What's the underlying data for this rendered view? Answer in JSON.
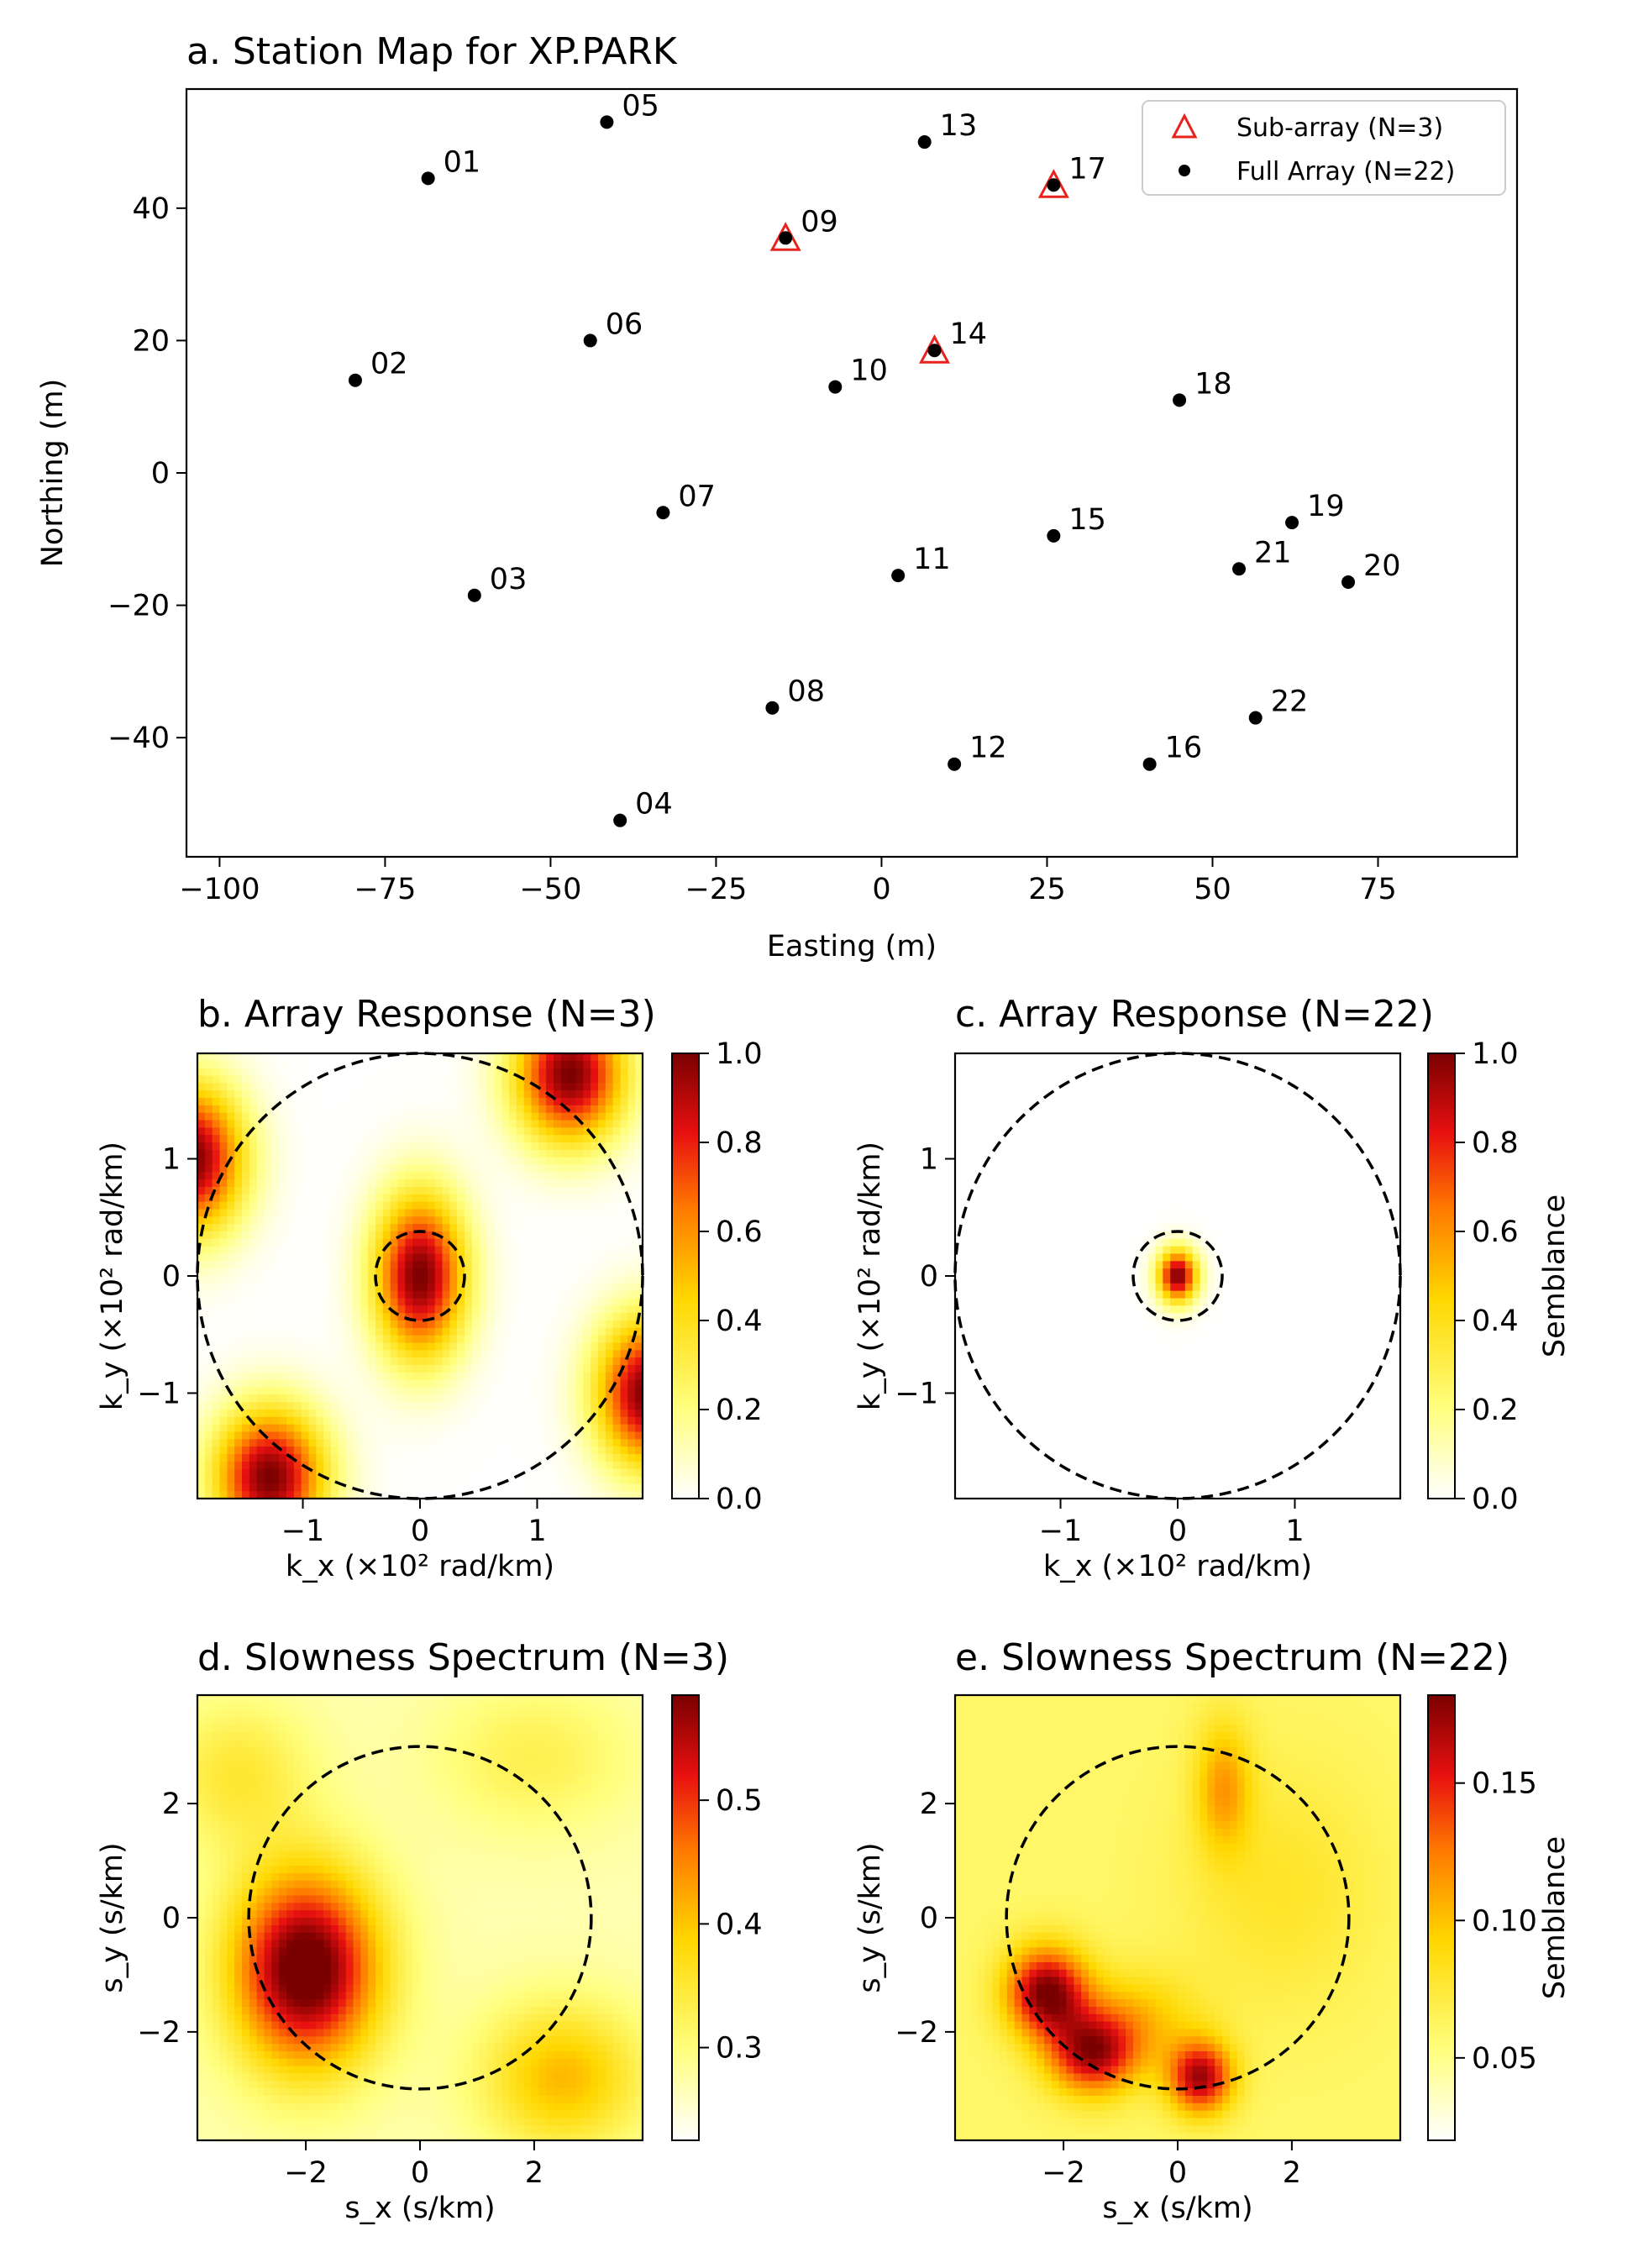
{
  "chart_data": [
    {
      "id": "a",
      "type": "scatter",
      "title": "a. Station Map for XP.PARK",
      "xlabel": "Easting (m)",
      "ylabel": "Northing (m)",
      "xlim": [
        -105,
        96
      ],
      "ylim": [
        -58,
        58
      ],
      "xticks": [
        -100,
        -75,
        -50,
        -25,
        0,
        25,
        50,
        75
      ],
      "xtick_labels": [
        "−100",
        "−75",
        "−50",
        "−25",
        "0",
        "25",
        "50",
        "75"
      ],
      "yticks": [
        -40,
        -20,
        0,
        20,
        40
      ],
      "ytick_labels": [
        "−40",
        "−20",
        "0",
        "20",
        "40"
      ],
      "grid": false,
      "legend": {
        "placement": "top-right",
        "entries": [
          {
            "label": "Sub-array (N=3)",
            "marker": "triangle-open",
            "color": "#e8231e"
          },
          {
            "label": "Full Array (N=22)",
            "marker": "dot",
            "color": "#000000"
          }
        ]
      },
      "stations": [
        {
          "label": "01",
          "x": -68.5,
          "y": 44.5
        },
        {
          "label": "02",
          "x": -79.5,
          "y": 14.0
        },
        {
          "label": "03",
          "x": -61.5,
          "y": -18.5
        },
        {
          "label": "04",
          "x": -39.5,
          "y": -52.5
        },
        {
          "label": "05",
          "x": -41.5,
          "y": 53.0
        },
        {
          "label": "06",
          "x": -44.0,
          "y": 20.0
        },
        {
          "label": "07",
          "x": -33.0,
          "y": -6.0
        },
        {
          "label": "08",
          "x": -16.5,
          "y": -35.5
        },
        {
          "label": "09",
          "x": -14.5,
          "y": 35.5
        },
        {
          "label": "10",
          "x": -7.0,
          "y": 13.0
        },
        {
          "label": "11",
          "x": 2.5,
          "y": -15.5
        },
        {
          "label": "12",
          "x": 11.0,
          "y": -44.0
        },
        {
          "label": "13",
          "x": 6.5,
          "y": 50.0
        },
        {
          "label": "14",
          "x": 8.0,
          "y": 18.5
        },
        {
          "label": "15",
          "x": 26.0,
          "y": -9.5
        },
        {
          "label": "16",
          "x": 40.5,
          "y": -44.0
        },
        {
          "label": "17",
          "x": 26.0,
          "y": 43.5
        },
        {
          "label": "18",
          "x": 45.0,
          "y": 11.0
        },
        {
          "label": "19",
          "x": 62.0,
          "y": -7.5
        },
        {
          "label": "20",
          "x": 70.5,
          "y": -16.5
        },
        {
          "label": "21",
          "x": 54.0,
          "y": -14.5
        },
        {
          "label": "22",
          "x": 56.5,
          "y": -37.0
        }
      ],
      "sub_array": [
        "09",
        "14",
        "17"
      ]
    },
    {
      "id": "b",
      "type": "heatmap",
      "title": "b. Array Response (N=3)",
      "xlabel": "k_x (×10² rad/km)",
      "ylabel": "k_y (×10² rad/km)",
      "xlim": [
        -1.9,
        1.9
      ],
      "ylim": [
        -1.9,
        1.9
      ],
      "ticks": [
        -1,
        0,
        1
      ],
      "tick_labels": [
        "−1",
        "0",
        "1"
      ],
      "colorbar": {
        "min": 0.0,
        "max": 1.0,
        "ticks": [
          0.0,
          0.2,
          0.4,
          0.6,
          0.8,
          1.0
        ],
        "tick_labels": [
          "0.0",
          "0.2",
          "0.4",
          "0.6",
          "0.8",
          "1.0"
        ],
        "label": ""
      },
      "circles": [
        {
          "cx": 0,
          "cy": 0,
          "r": 1.9
        },
        {
          "cx": 0,
          "cy": 0,
          "r": 0.38
        }
      ],
      "peaks": [
        {
          "x": 0.0,
          "y": 0.0,
          "sx": 0.28,
          "sy": 0.5,
          "amp": 1.0
        },
        {
          "x": 1.28,
          "y": 1.72,
          "sx": 0.34,
          "sy": 0.42,
          "amp": 1.0
        },
        {
          "x": -1.28,
          "y": -1.72,
          "sx": 0.34,
          "sy": 0.42,
          "amp": 1.0
        },
        {
          "x": -1.95,
          "y": 1.0,
          "sx": 0.32,
          "sy": 0.45,
          "amp": 1.0
        },
        {
          "x": 1.95,
          "y": -1.0,
          "sx": 0.32,
          "sy": 0.45,
          "amp": 1.0
        }
      ]
    },
    {
      "id": "c",
      "type": "heatmap",
      "title": "c. Array Response (N=22)",
      "xlabel": "k_x (×10² rad/km)",
      "ylabel": "k_y (×10² rad/km)",
      "xlim": [
        -1.9,
        1.9
      ],
      "ylim": [
        -1.9,
        1.9
      ],
      "ticks": [
        -1,
        0,
        1
      ],
      "tick_labels": [
        "−1",
        "0",
        "1"
      ],
      "colorbar": {
        "min": 0.0,
        "max": 1.0,
        "ticks": [
          0.0,
          0.2,
          0.4,
          0.6,
          0.8,
          1.0
        ],
        "tick_labels": [
          "0.0",
          "0.2",
          "0.4",
          "0.6",
          "0.8",
          "1.0"
        ],
        "label": "Semblance"
      },
      "circles": [
        {
          "cx": 0,
          "cy": 0,
          "r": 1.9
        },
        {
          "cx": 0,
          "cy": 0,
          "r": 0.38
        }
      ],
      "peaks": [
        {
          "x": 0.0,
          "y": 0.0,
          "sx": 0.12,
          "sy": 0.16,
          "amp": 1.0
        }
      ]
    },
    {
      "id": "d",
      "type": "heatmap",
      "title": "d. Slowness Spectrum (N=3)",
      "xlabel": "s_x (s/km)",
      "ylabel": "s_y (s/km)",
      "xlim": [
        -3.9,
        3.9
      ],
      "ylim": [
        -3.9,
        3.9
      ],
      "ticks": [
        -2,
        0,
        2
      ],
      "tick_labels": [
        "−2",
        "0",
        "2"
      ],
      "colorbar": {
        "min": 0.225,
        "max": 0.585,
        "ticks": [
          0.3,
          0.4,
          0.5
        ],
        "tick_labels": [
          "0.3",
          "0.4",
          "0.5"
        ],
        "label": ""
      },
      "circles": [
        {
          "cx": 0,
          "cy": 0,
          "r": 3.0
        }
      ],
      "peaks": [
        {
          "x": -2.0,
          "y": -0.9,
          "sx": 0.9,
          "sy": 1.2,
          "amp": 0.35
        },
        {
          "x": 2.5,
          "y": -2.8,
          "sx": 1.0,
          "sy": 0.9,
          "amp": 0.14
        },
        {
          "x": 2.0,
          "y": 2.8,
          "sx": 1.2,
          "sy": 0.9,
          "amp": 0.06
        },
        {
          "x": -3.2,
          "y": 2.5,
          "sx": 0.9,
          "sy": 0.9,
          "amp": 0.08
        }
      ],
      "base": 0.27
    },
    {
      "id": "e",
      "type": "heatmap",
      "title": "e. Slowness Spectrum (N=22)",
      "xlabel": "s_x (s/km)",
      "ylabel": "s_y (s/km)",
      "xlim": [
        -3.9,
        3.9
      ],
      "ylim": [
        -3.9,
        3.9
      ],
      "ticks": [
        -2,
        0,
        2
      ],
      "tick_labels": [
        "−2",
        "0",
        "2"
      ],
      "colorbar": {
        "min": 0.02,
        "max": 0.182,
        "ticks": [
          0.05,
          0.1,
          0.15
        ],
        "tick_labels": [
          "0.05",
          "0.10",
          "0.15"
        ],
        "label": "Semblance"
      },
      "circles": [
        {
          "cx": 0,
          "cy": 0,
          "r": 3.0
        }
      ],
      "peaks": [
        {
          "x": -2.3,
          "y": -1.3,
          "sx": 0.5,
          "sy": 0.55,
          "amp": 0.12
        },
        {
          "x": -1.5,
          "y": -2.4,
          "sx": 0.55,
          "sy": 0.5,
          "amp": 0.1
        },
        {
          "x": 0.4,
          "y": -2.8,
          "sx": 0.4,
          "sy": 0.45,
          "amp": 0.11
        },
        {
          "x": 0.8,
          "y": 2.3,
          "sx": 0.35,
          "sy": 0.8,
          "amp": 0.05
        },
        {
          "x": -0.8,
          "y": -1.8,
          "sx": 0.8,
          "sy": 0.6,
          "amp": 0.04
        },
        {
          "x": 1.8,
          "y": 0.5,
          "sx": 1.2,
          "sy": 1.5,
          "amp": 0.02
        }
      ],
      "base": 0.06
    }
  ]
}
